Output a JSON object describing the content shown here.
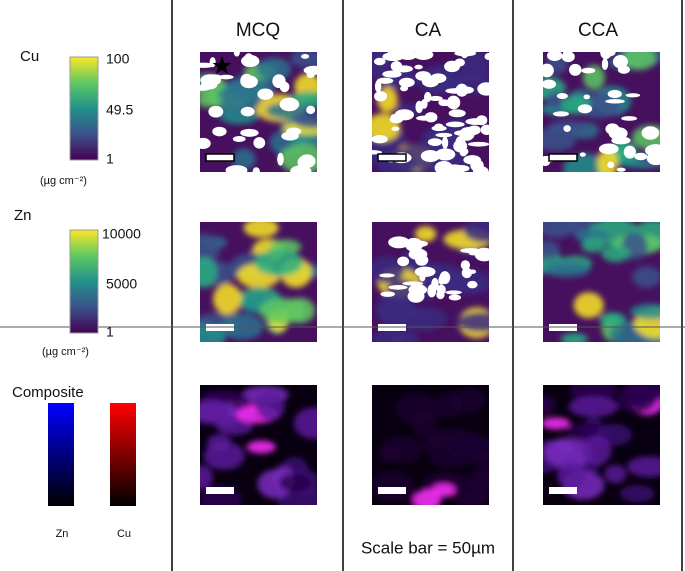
{
  "columns": [
    "MCQ",
    "CA",
    "CCA"
  ],
  "rows": [
    {
      "label": "Cu",
      "ticks": [
        "100",
        "49.5",
        "1"
      ],
      "unit": "(µg cm⁻²)"
    },
    {
      "label": "Zn",
      "ticks": [
        "10000",
        "5000",
        "1"
      ],
      "unit": "(µg cm⁻²)"
    },
    {
      "label": "Composite",
      "channels": [
        "Zn",
        "Cu"
      ]
    }
  ],
  "scale_note": "Scale bar = 50µm"
}
